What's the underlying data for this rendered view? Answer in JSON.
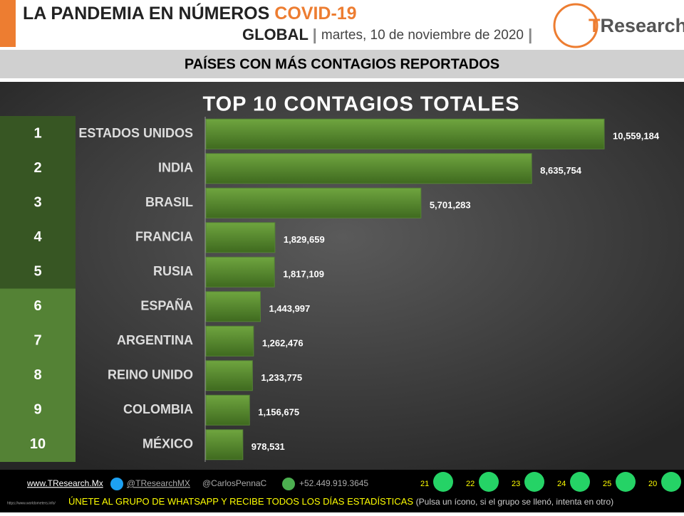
{
  "header": {
    "title": "LA PANDEMIA EN NÚMEROS",
    "highlight": "COVID-19",
    "scope": "GLOBAL",
    "date": "martes, 10 de noviembre de 2020",
    "logo_t": "T",
    "logo_rest": "Research"
  },
  "banner": "PAÍSES CON MÁS CONTAGIOS REPORTADOS",
  "chart_data": {
    "type": "bar",
    "orientation": "horizontal",
    "title": "TOP 10 CONTAGIOS TOTALES",
    "ranks": [
      1,
      2,
      3,
      4,
      5,
      6,
      7,
      8,
      9,
      10
    ],
    "categories": [
      "ESTADOS UNIDOS",
      "INDIA",
      "BRASIL",
      "FRANCIA",
      "RUSIA",
      "ESPAÑA",
      "ARGENTINA",
      "REINO UNIDO",
      "COLOMBIA",
      "MÉXICO"
    ],
    "values": [
      10559184,
      8635754,
      5701283,
      1829659,
      1817109,
      1443997,
      1262476,
      1233775,
      1156675,
      978531
    ],
    "value_labels": [
      "10,559,184",
      "8,635,754",
      "5,701,283",
      "1,829,659",
      "1,817,109",
      "1,443,997",
      "1,262,476",
      "1,233,775",
      "1,156,675",
      "978,531"
    ],
    "color": "#548235"
  },
  "footer": {
    "web": "www.TResearch.Mx",
    "twitter": "@TResearchMX",
    "twitter2": "@CarlosPennaC",
    "phone": "+52.449.919.3645",
    "groups": [
      21,
      22,
      23,
      24,
      25,
      20
    ],
    "cta": "ÚNETE AL GRUPO DE WHATSAPP Y RECIBE TODOS LOS DÍAS ESTADÍSTICAS",
    "hint": "(Pulsa un ícono, si el grupo se llenó, intenta en otro)",
    "source": "https://www.worldometers.info/"
  }
}
